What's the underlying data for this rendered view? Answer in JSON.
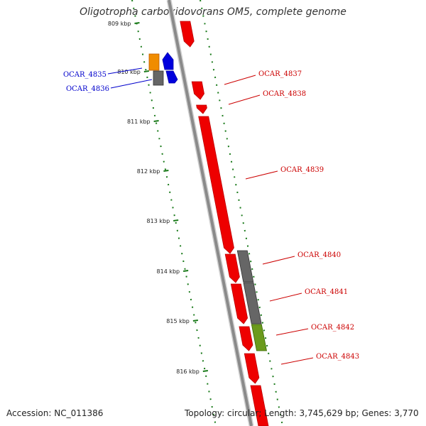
{
  "title": "Oligotropha carboxidovorans OM5, complete genome",
  "footer": {
    "accession": "Accession: NC_011386",
    "stats": "Topology: circular; Length: 3,745,629 bp; Genes: 3,770"
  },
  "colors": {
    "backbone": "#8a8a8a",
    "forward_cds": "#ee0000",
    "gray_feature": "#666666",
    "orange_feature": "#f08c00",
    "blue_feature": "#0000dd",
    "olive_feature": "#6b9a1c",
    "gc_track": "#1a7a1a",
    "left_label": "#0000cc",
    "right_label": "#cc0000"
  },
  "ruler": [
    {
      "label": "809 kbp"
    },
    {
      "label": "810 kbp"
    },
    {
      "label": "811 kbp"
    },
    {
      "label": "812 kbp"
    },
    {
      "label": "813 kbp"
    },
    {
      "label": "814 kbp"
    },
    {
      "label": "815 kbp"
    },
    {
      "label": "816 kbp"
    }
  ],
  "left_genes": [
    {
      "label": "OCAR_4835"
    },
    {
      "label": "OCAR_4836"
    }
  ],
  "right_genes": [
    {
      "label": "OCAR_4837"
    },
    {
      "label": "OCAR_4838"
    },
    {
      "label": "OCAR_4839"
    },
    {
      "label": "OCAR_4840"
    },
    {
      "label": "OCAR_4841"
    },
    {
      "label": "OCAR_4842"
    },
    {
      "label": "OCAR_4843"
    }
  ]
}
